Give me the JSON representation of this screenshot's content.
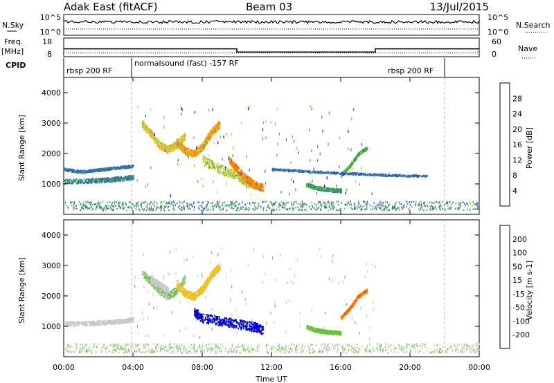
{
  "header": {
    "station": "Adak East (fitACF)",
    "beam": "Beam 03",
    "date": "13/Jul/2015"
  },
  "panels": {
    "nsky": {
      "label": "N.Sky",
      "ticks": [
        "10^5",
        "10^0"
      ],
      "right_label": "N.Search",
      "right_ticks": [
        "10^5",
        "10^0"
      ]
    },
    "freq": {
      "label_top": "Freq.",
      "label_bottom": "[MHz]",
      "ticks": [
        "18",
        "8"
      ],
      "right_label": "Nave",
      "right_ticks": [
        "60",
        "0"
      ]
    },
    "cpid": {
      "label": "CPID",
      "segments": [
        {
          "label": "rbsp 200 RF",
          "start_h": 0,
          "end_h": 4.0
        },
        {
          "label": "normalsound (fast) -157 RF",
          "start_h": 4.0,
          "end_h": 22.0
        },
        {
          "label": "rbsp 200 RF",
          "start_h": 18.3,
          "end_h": 22.0
        }
      ]
    }
  },
  "range_panels": {
    "ylabel": "Slant Range [km]",
    "yticks": [
      "1000",
      "2000",
      "3000",
      "4000"
    ],
    "xlabel": "Time UT",
    "xticks": [
      "00:00",
      "04:00",
      "08:00",
      "12:00",
      "16:00",
      "20:00",
      "00:00"
    ]
  },
  "colorbars": {
    "power": {
      "label": "Power [dB]",
      "ticks": [
        "28",
        "24",
        "20",
        "16",
        "12",
        "8",
        "4"
      ],
      "colors": [
        "#0000ff",
        "#2a57c8",
        "#3a8a8a",
        "#2e9a4e",
        "#6ac23c",
        "#c8d43c",
        "#f0a020",
        "#ff7d00",
        "#ff4c00",
        "#ff0000"
      ]
    },
    "velocity": {
      "label": "Velocity [m s-1]",
      "ticks": [
        "200",
        "100",
        "50",
        "15",
        "-15",
        "-50",
        "-100",
        "-200"
      ],
      "colors": [
        "#0000d0",
        "#2a57c8",
        "#3a8a8a",
        "#2e9a4e",
        "#6ac23c",
        "#c8c8c8",
        "#f0c020",
        "#ff9000",
        "#ff5a00",
        "#ff0000"
      ]
    }
  },
  "chart_data": {
    "type": "heatmap",
    "x_unit": "hours UT",
    "x_range": [
      0,
      24
    ],
    "y_range_km": [
      0,
      4500
    ],
    "dashed_markers_h": [
      4.0,
      22.0
    ],
    "nsky_level": 3.2,
    "nsearch_level": 1.5,
    "frequency_mhz": [
      {
        "start_h": 0,
        "end_h": 10.0,
        "value": 12.2
      },
      {
        "start_h": 10.0,
        "end_h": 18.0,
        "value": 10.5
      },
      {
        "start_h": 18.0,
        "end_h": 24,
        "value": 12.2
      }
    ],
    "nave_level": 12,
    "power_structures": [
      {
        "t": [
          0.0,
          1.5,
          2.5,
          3.5,
          4.0
        ],
        "r": [
          1100,
          1120,
          1150,
          1200,
          1250
        ],
        "w": 70,
        "v": 8
      },
      {
        "t": [
          0.0,
          1.0,
          2.0,
          3.0,
          4.0
        ],
        "r": [
          1500,
          1420,
          1480,
          1550,
          1600
        ],
        "w": 40,
        "v": 6
      },
      {
        "t": [
          4.5,
          5.0,
          5.5,
          6.0,
          6.5,
          7.0
        ],
        "r": [
          3000,
          2700,
          2300,
          2150,
          2300,
          2600
        ],
        "w": 120,
        "v": 18
      },
      {
        "t": [
          6.5,
          7.0,
          7.5,
          8.0,
          8.5,
          9.0
        ],
        "r": [
          2400,
          2100,
          2000,
          2250,
          2700,
          3000
        ],
        "w": 120,
        "v": 20
      },
      {
        "t": [
          8.0,
          9.0,
          10.0,
          10.5,
          11.0
        ],
        "r": [
          1800,
          1500,
          1300,
          1100,
          1000
        ],
        "w": 150,
        "v": 16
      },
      {
        "t": [
          9.5,
          10.0,
          10.5,
          11.0,
          11.5
        ],
        "r": [
          1800,
          1500,
          1200,
          1000,
          900
        ],
        "w": 120,
        "v": 22
      },
      {
        "t": [
          14.0,
          14.5,
          15.0,
          15.5,
          16.0
        ],
        "r": [
          1000,
          900,
          850,
          820,
          800
        ],
        "w": 60,
        "v": 10
      },
      {
        "t": [
          16.0,
          16.5,
          17.0,
          17.5
        ],
        "r": [
          1300,
          1600,
          2000,
          2200
        ],
        "w": 50,
        "v": 12
      },
      {
        "t": [
          12.0,
          13.5,
          15.0,
          17.0,
          19.0,
          21.0
        ],
        "r": [
          1500,
          1450,
          1400,
          1350,
          1300,
          1280
        ],
        "w": 30,
        "v": 6
      }
    ],
    "velocity_structures": [
      {
        "t": [
          4.5,
          5.0,
          5.5,
          6.0,
          6.5,
          7.0
        ],
        "r": [
          2800,
          2500,
          2200,
          2000,
          2200,
          2600
        ],
        "w": 120,
        "v": 15
      },
      {
        "t": [
          6.5,
          7.0,
          7.5,
          8.0,
          8.5,
          9.0
        ],
        "r": [
          2400,
          2100,
          2000,
          2250,
          2700,
          3000
        ],
        "w": 120,
        "v": -30
      },
      {
        "t": [
          7.5,
          8.0,
          9.0,
          10.0,
          11.0,
          11.5
        ],
        "r": [
          1500,
          1300,
          1200,
          1100,
          1000,
          900
        ],
        "w": 150,
        "v": 200
      },
      {
        "t": [
          5.0,
          5.5,
          6.0
        ],
        "r": [
          2600,
          2400,
          2200
        ],
        "w": 100,
        "v": 0
      },
      {
        "t": [
          14.0,
          14.5,
          15.0,
          15.5,
          16.0
        ],
        "r": [
          1000,
          900,
          850,
          820,
          800
        ],
        "w": 60,
        "v": 20
      },
      {
        "t": [
          16.0,
          16.5,
          17.0,
          17.5
        ],
        "r": [
          1300,
          1600,
          2000,
          2200
        ],
        "w": 50,
        "v": -100
      },
      {
        "t": [
          0.0,
          1.5,
          2.5,
          3.5,
          4.0
        ],
        "r": [
          1100,
          1120,
          1150,
          1200,
          1250
        ],
        "w": 70,
        "v": 0
      }
    ]
  }
}
